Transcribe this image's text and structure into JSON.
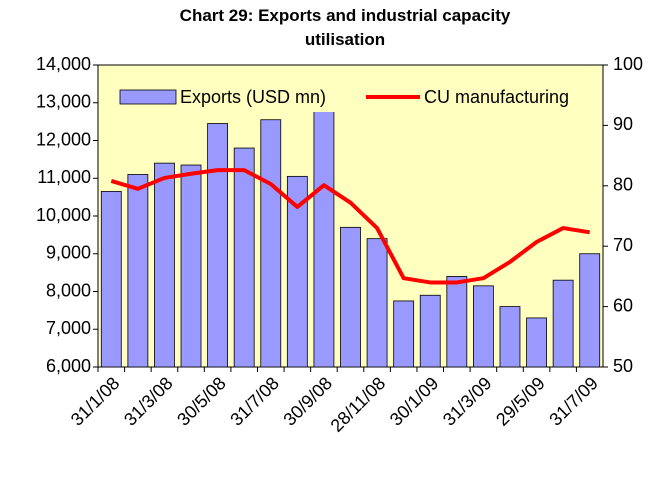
{
  "chart_data": {
    "type": "bar_line",
    "title": "Chart 29:  Exports and industrial capacity utilisation",
    "categories": [
      "31/1/08",
      null,
      "31/3/08",
      null,
      "30/5/08",
      null,
      "31/7/08",
      null,
      "30/9/08",
      null,
      "28/11/08",
      null,
      "30/1/09",
      null,
      "31/3/09",
      null,
      "29/5/09",
      null,
      "31/7/09"
    ],
    "series": [
      {
        "name": "Exports (USD mn)",
        "color": "#9999ff",
        "type": "bar",
        "values": [
          10650,
          11100,
          11400,
          11350,
          12450,
          11800,
          12550,
          11050,
          12800,
          9700,
          9400,
          7750,
          7900,
          8400,
          8150,
          7600,
          7300,
          8300,
          9000
        ]
      },
      {
        "name": "CU manufacturing",
        "color": "#ff0000",
        "type": "line",
        "axis": "y2",
        "values": [
          80.8,
          79.5,
          81.3,
          82,
          82.6,
          82.6,
          80.3,
          76.5,
          80.1,
          77.2,
          73,
          64.7,
          64,
          64,
          64.7,
          67.4,
          70.7,
          73,
          72.3
        ]
      }
    ],
    "ylim": [
      6000,
      14000
    ],
    "yticks": [
      {
        "value": 6000,
        "label": "6,000"
      },
      {
        "value": 7000,
        "label": "7,000"
      },
      {
        "value": 8000,
        "label": "8,000"
      },
      {
        "value": 9000,
        "label": "9,000"
      },
      {
        "value": 10000,
        "label": "10,000"
      },
      {
        "value": 11000,
        "label": "11,000"
      },
      {
        "value": 12000,
        "label": "12,000"
      },
      {
        "value": 13000,
        "label": "13,000"
      },
      {
        "value": 14000,
        "label": "14,000"
      }
    ],
    "y2lim": [
      50,
      100
    ],
    "y2ticks": [
      50,
      60,
      70,
      80,
      90,
      100
    ],
    "legend": "top",
    "background": "#ffffc0"
  }
}
